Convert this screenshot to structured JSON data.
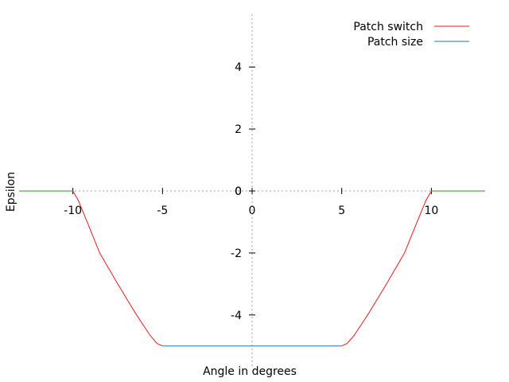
{
  "chart_data": {
    "type": "line",
    "xlabel": "Angle in degrees",
    "ylabel": "Epsilon",
    "xlim": [
      -13,
      13
    ],
    "ylim": [
      -5.7,
      5.7
    ],
    "x_ticks": [
      -10,
      -5,
      0,
      5,
      10
    ],
    "y_ticks": [
      -4,
      -2,
      0,
      2,
      4
    ],
    "grid": "zero-axes-dotted",
    "legend_position": "top-right",
    "series": [
      {
        "name": "Patch switch",
        "color": "#e41a1c",
        "x": [
          -10,
          -9.7,
          -9.2,
          -8.5,
          -7.5,
          -6.5,
          -5.7,
          -5.3,
          -5.0,
          null,
          5.0,
          5.3,
          5.7,
          6.5,
          7.5,
          8.5,
          9.2,
          9.7,
          10
        ],
        "y": [
          0,
          -0.3,
          -1.0,
          -2.0,
          -3.0,
          -3.95,
          -4.65,
          -4.92,
          -5.0,
          null,
          -5.0,
          -4.92,
          -4.65,
          -3.95,
          -3.0,
          -2.0,
          -1.0,
          -0.3,
          0
        ]
      },
      {
        "name": "Patch size",
        "color": "#1f77b4",
        "x": [
          -5.0,
          5.0
        ],
        "y": [
          -5.0,
          -5.0
        ]
      },
      {
        "color": "#1a9a1a",
        "x": [
          -13,
          -10,
          null,
          10,
          13
        ],
        "y": [
          0,
          0,
          null,
          0,
          0
        ]
      }
    ]
  }
}
